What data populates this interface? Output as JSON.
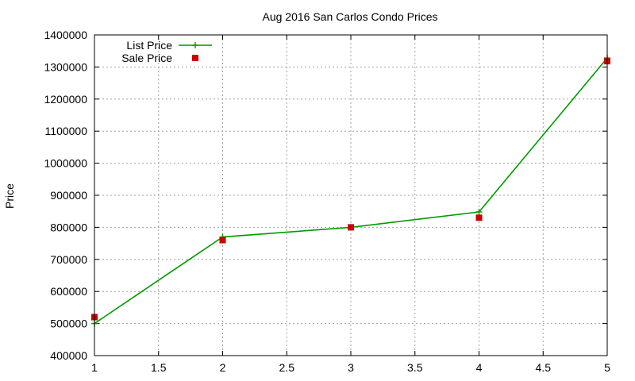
{
  "chart_data": {
    "type": "line",
    "title": "Aug 2016 San Carlos Condo Prices",
    "ylabel": "Price",
    "xlabel": "",
    "xlim": [
      1,
      5
    ],
    "ylim": [
      400000,
      1400000
    ],
    "x_ticks": [
      1,
      1.5,
      2,
      2.5,
      3,
      3.5,
      4,
      4.5,
      5
    ],
    "y_ticks": [
      400000,
      500000,
      600000,
      700000,
      800000,
      900000,
      1000000,
      1100000,
      1200000,
      1300000,
      1400000
    ],
    "grid": true,
    "legend_position": "top-left",
    "series": [
      {
        "name": "List Price",
        "style": "line+cross",
        "color": "#009900",
        "x": [
          1,
          2,
          3,
          4,
          5
        ],
        "values": [
          500000,
          770000,
          800000,
          848000,
          1328000
        ]
      },
      {
        "name": "Sale Price",
        "style": "square-points",
        "color": "#cc0000",
        "x": [
          1,
          2,
          3,
          4,
          5
        ],
        "values": [
          520000,
          760000,
          800000,
          830000,
          1318000
        ]
      }
    ]
  }
}
